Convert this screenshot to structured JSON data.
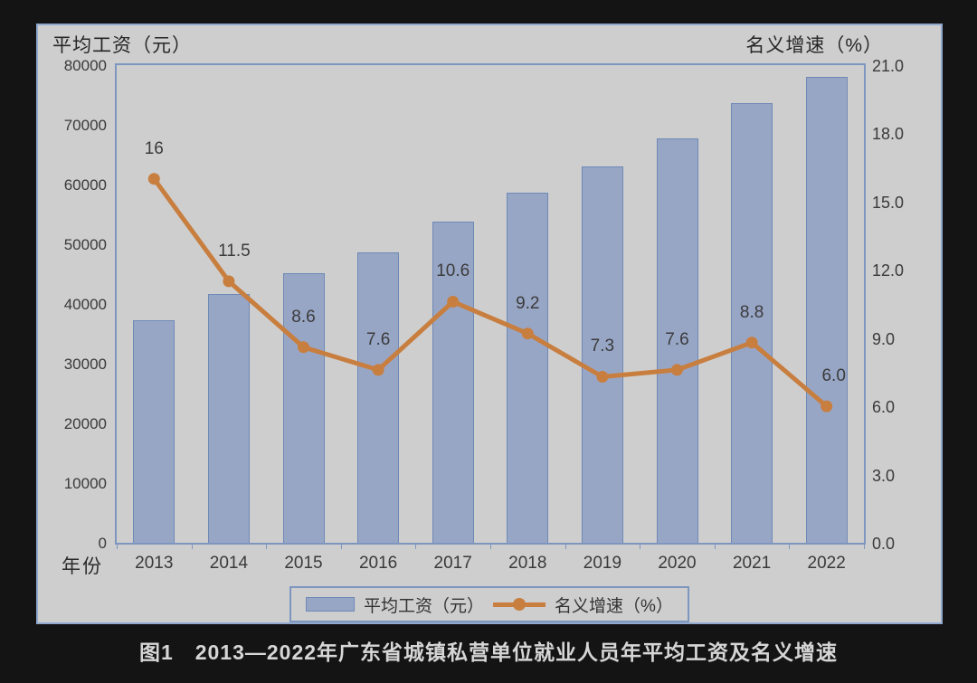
{
  "caption": {
    "text": "图1　2013—2022年广东省城镇私营单位就业人员年平均工资及名义增速"
  },
  "axes": {
    "left_title": "平均工资（元）",
    "right_title": "名义增速（%）",
    "x_title": "年份",
    "left_tick_labels": [
      "80000",
      "70000",
      "60000",
      "50000",
      "40000",
      "30000",
      "20000",
      "10000",
      "0"
    ],
    "right_tick_labels": [
      "21.0",
      "18.0",
      "15.0",
      "12.0",
      "9.0",
      "6.0",
      "3.0",
      "0.0"
    ]
  },
  "legend": {
    "bar_label": "平均工资（元）",
    "line_label": "名义增速（%）"
  },
  "colors": {
    "page_background": "#141414",
    "panel_background": "#cecece",
    "panel_border": "#90a9cd",
    "plot_border": "#7e96bf",
    "bar_fill": "#98a6c6",
    "bar_border": "#6e89b6",
    "line": "#c87e3e",
    "label_text": "#3b3b3b",
    "caption_text": "#d6d6d6"
  },
  "chart_data": {
    "type": "bar",
    "subtype": "combo-bar-line-dual-axis",
    "title": "图1　2013—2022年广东省城镇私营单位就业人员年平均工资及名义增速",
    "categories": [
      "2013",
      "2014",
      "2015",
      "2016",
      "2017",
      "2018",
      "2019",
      "2020",
      "2021",
      "2022"
    ],
    "series": [
      {
        "name": "平均工资（元）",
        "type": "bar",
        "axis": "left",
        "values_estimated": true,
        "values": [
          37300,
          41600,
          45200,
          48600,
          53800,
          58700,
          63000,
          67800,
          73700,
          78100
        ]
      },
      {
        "name": "名义增速（%）",
        "type": "line",
        "axis": "right",
        "values": [
          16,
          11.5,
          8.6,
          7.6,
          10.6,
          9.2,
          7.3,
          7.6,
          8.8,
          6.0
        ],
        "point_labels": [
          "16",
          "11.5",
          "8.6",
          "7.6",
          "10.6",
          "9.2",
          "7.3",
          "7.6",
          "8.8",
          "6.0"
        ]
      }
    ],
    "left_axis": {
      "label": "平均工资（元）",
      "min": 0,
      "max": 80000,
      "step": 10000
    },
    "right_axis": {
      "label": "名义增速（%）",
      "min": 0,
      "max": 21,
      "step": 3
    },
    "x_axis": {
      "label": "年份"
    },
    "grid": false,
    "legend_position": "bottom"
  }
}
